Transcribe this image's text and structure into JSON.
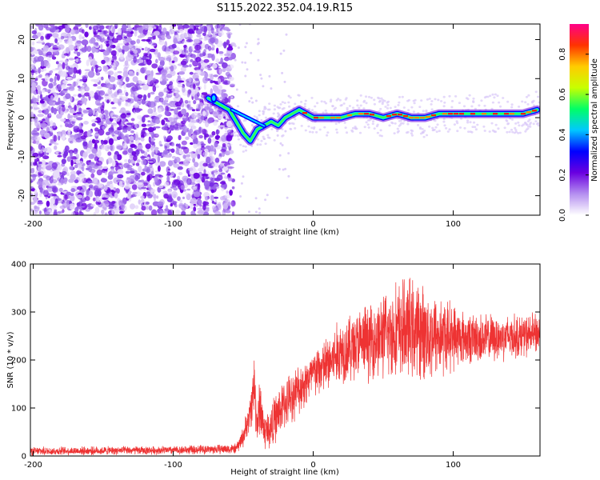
{
  "title": "S115.2022.352.04.19.R15",
  "chart_data": [
    {
      "type": "heatmap",
      "title": "S115.2022.352.04.19.R15",
      "xlabel": "Height of straight line (km)",
      "ylabel": "Frequency (Hz)",
      "xlim": [
        -202,
        162
      ],
      "ylim": [
        -25,
        24
      ],
      "xticks": [
        "-200",
        "-100",
        "0",
        "100"
      ],
      "xtick_values": [
        -200,
        -100,
        0,
        100
      ],
      "yticks": [
        "-20",
        "-10",
        "0",
        "10",
        "20"
      ],
      "ytick_values": [
        -20,
        -10,
        0,
        10,
        20
      ],
      "noise_region_x": [
        -202,
        -57
      ],
      "signal_start_x": -60,
      "ridge": {
        "x": [
          -75,
          -60,
          -55,
          -50,
          -45,
          -40,
          -35,
          -30,
          -25,
          -20,
          -15,
          -10,
          -5,
          0,
          5,
          10,
          20,
          30,
          40,
          50,
          60,
          70,
          80,
          90,
          100,
          110,
          120,
          130,
          140,
          150,
          160
        ],
        "frequency_hz": [
          5,
          2,
          -1,
          -4,
          -6,
          -3,
          -2,
          -1,
          -2,
          0,
          1,
          2,
          1,
          0,
          0,
          0,
          0,
          1,
          1,
          0,
          1,
          0,
          0,
          1,
          1,
          1,
          1,
          1,
          1,
          1,
          2
        ]
      },
      "colorbar": {
        "label": "Normalized spectral amplitude",
        "range": [
          0,
          0.95
        ],
        "ticks": [
          "0.0",
          "0.2",
          "0.4",
          "0.6",
          "0.8"
        ],
        "tick_values": [
          0,
          0.2,
          0.4,
          0.6,
          0.8
        ],
        "colors": [
          "#ffffff",
          "#b58ff0",
          "#6a00e0",
          "#0000ff",
          "#00c8ff",
          "#00ff66",
          "#c8ff00",
          "#ffcc00",
          "#ff3300",
          "#ff0088"
        ]
      }
    },
    {
      "type": "line",
      "xlabel": "Height of straight line (km)",
      "ylabel": "SNR (10 * v/v)",
      "xlim": [
        -202,
        162
      ],
      "ylim": [
        0,
        400
      ],
      "xticks": [
        "-200",
        "-100",
        "0",
        "100"
      ],
      "xtick_values": [
        -200,
        -100,
        0,
        100
      ],
      "yticks": [
        "0",
        "100",
        "200",
        "300",
        "400"
      ],
      "ytick_values": [
        0,
        100,
        200,
        300,
        400
      ],
      "color": "#ee3333",
      "envelope": {
        "x": [
          -202,
          -100,
          -55,
          -50,
          -45,
          -42,
          -40,
          -38,
          -35,
          -30,
          -25,
          -20,
          -10,
          0,
          10,
          20,
          30,
          40,
          50,
          60,
          70,
          80,
          90,
          100,
          110,
          120,
          130,
          140,
          150,
          162
        ],
        "mean": [
          10,
          12,
          15,
          40,
          90,
          150,
          60,
          110,
          50,
          60,
          90,
          110,
          140,
          170,
          190,
          220,
          230,
          240,
          250,
          260,
          265,
          255,
          250,
          250,
          245,
          245,
          245,
          250,
          250,
          255
        ],
        "spread": [
          10,
          10,
          12,
          25,
          40,
          90,
          40,
          80,
          45,
          55,
          60,
          60,
          60,
          60,
          70,
          80,
          85,
          90,
          100,
          120,
          120,
          110,
          100,
          80,
          60,
          60,
          55,
          55,
          50,
          50
        ]
      }
    }
  ]
}
